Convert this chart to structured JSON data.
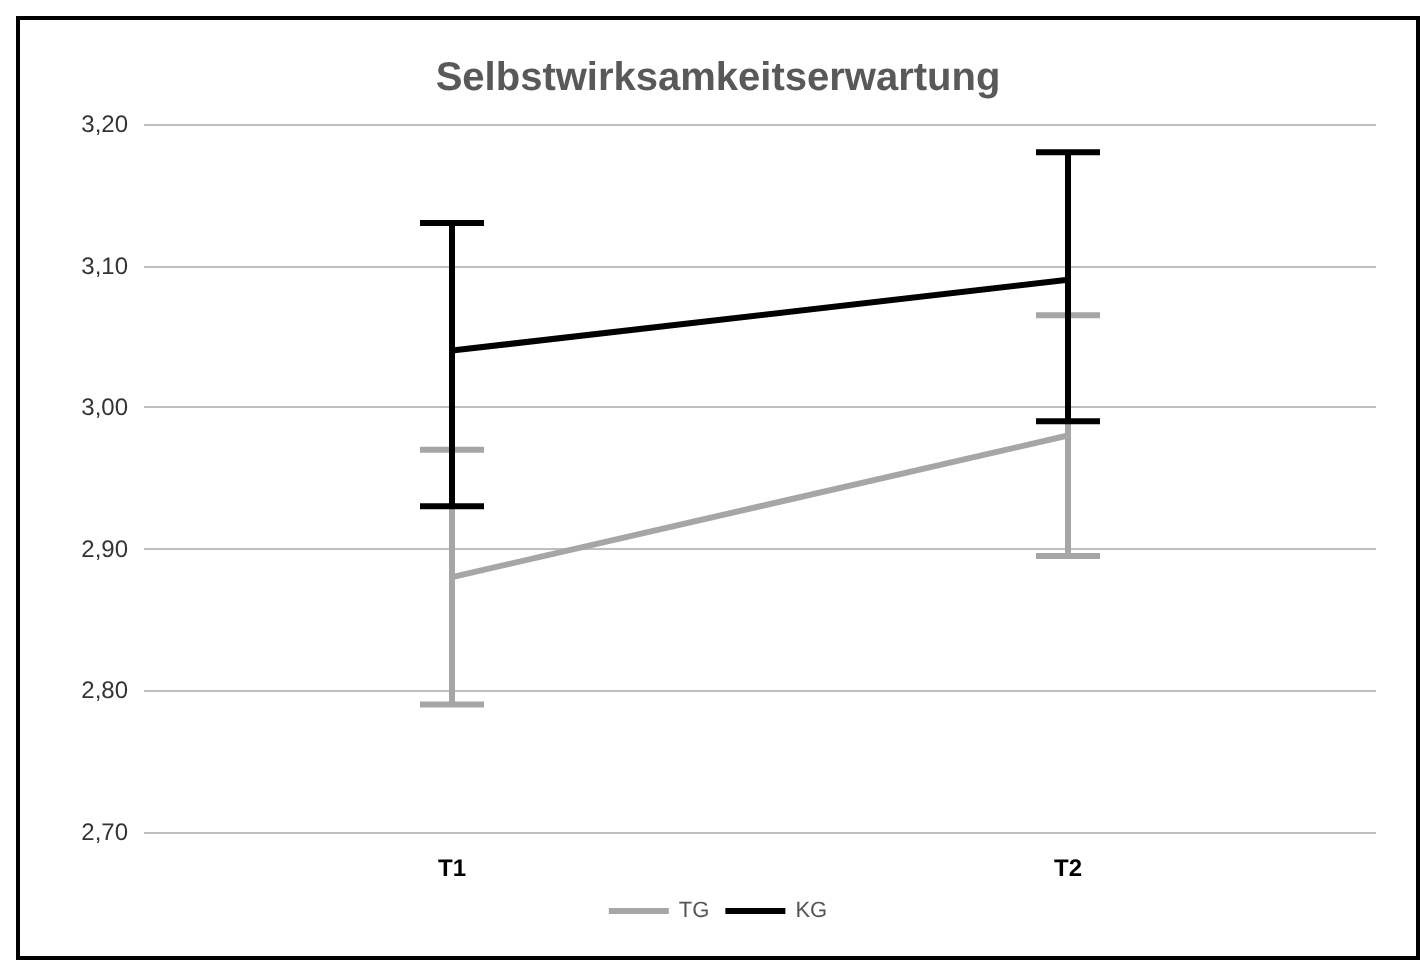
{
  "chart_data": {
    "type": "line",
    "title": "Selbstwirksamkeitserwartung",
    "categories": [
      "T1",
      "T2"
    ],
    "series": [
      {
        "name": "TG",
        "color": "#a6a6a6",
        "values": [
          2.88,
          2.98
        ],
        "errors": [
          [
            2.79,
            2.97
          ],
          [
            2.895,
            3.065
          ]
        ]
      },
      {
        "name": "KG",
        "color": "#000000",
        "values": [
          3.04,
          3.09
        ],
        "errors": [
          [
            2.93,
            3.13
          ],
          [
            2.99,
            3.18
          ]
        ]
      }
    ],
    "ylim": [
      2.7,
      3.2
    ],
    "yticks": [
      {
        "value": 2.7,
        "label": "2,70"
      },
      {
        "value": 2.8,
        "label": "2,80"
      },
      {
        "value": 2.9,
        "label": "2,90"
      },
      {
        "value": 3.0,
        "label": "3,00"
      },
      {
        "value": 3.1,
        "label": "3,10"
      },
      {
        "value": 3.2,
        "label": "3,20"
      }
    ],
    "grid": "y",
    "legend": "bottom",
    "marker": "none",
    "line_style": "solid"
  }
}
